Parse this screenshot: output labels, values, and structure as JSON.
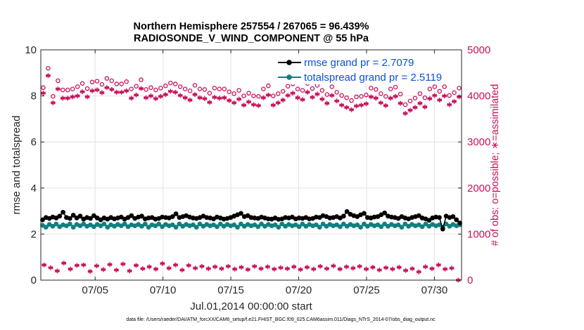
{
  "chart_data": {
    "type": "line",
    "title": "Northern Hemisphere 257554 / 267065 = 96.439%",
    "subtitle": "RADIOSONDE_V_WIND_COMPONENT @ 55 hPa",
    "xlabel": "Jul.01,2014 00:00:00 start",
    "ylabel_left": "rmse and totalspread",
    "ylabel_right": "# of obs: o=possible; ∗=assimilated",
    "footer": "data file: /Users/raeder/DAI/ATM_forcXX/CAM6_setup/f.e21.FHIST_BGC.f09_025.CAM6assim.011/Diags_NTrS_2014-07/obs_diag_output.nc",
    "xlim": [
      1,
      32
    ],
    "ylim_left": [
      0,
      10
    ],
    "ylim_right": [
      0,
      5000
    ],
    "x_ticks": [
      5,
      10,
      15,
      20,
      25,
      30
    ],
    "x_tick_labels": [
      "07/05",
      "07/10",
      "07/15",
      "07/20",
      "07/25",
      "07/30"
    ],
    "y_left_ticks": [
      "0",
      "2",
      "4",
      "6",
      "8",
      "10"
    ],
    "y_right_ticks": [
      "0",
      "1000",
      "2000",
      "3000",
      "4000",
      "5000"
    ],
    "legend": [
      {
        "label": "rmse grand pr = 2.7079",
        "color": "#000000"
      },
      {
        "label": "totalspread grand pr = 2.5119",
        "color": "#0f8080"
      }
    ],
    "colors": {
      "rmse": "#000000",
      "spread": "#0f8080",
      "obs": "#c8105a"
    },
    "series": [
      {
        "name": "rmse",
        "axis": "left",
        "values": [
          2.62,
          2.72,
          2.68,
          2.74,
          2.7,
          2.78,
          2.95,
          2.72,
          2.68,
          2.82,
          2.7,
          2.78,
          2.65,
          2.72,
          2.68,
          2.8,
          2.7,
          2.62,
          2.7,
          2.65,
          2.72,
          2.66,
          2.7,
          2.74,
          2.65,
          2.72,
          2.8,
          2.68,
          2.74,
          2.78,
          2.66,
          2.7,
          2.72,
          2.65,
          2.68,
          2.74,
          2.72,
          2.7,
          2.76,
          2.88,
          2.72,
          2.76,
          2.8,
          2.74,
          2.7,
          2.68,
          2.72,
          2.78,
          2.72,
          2.7,
          2.66,
          2.74,
          2.7,
          2.65,
          2.68,
          2.72,
          2.78,
          2.84,
          2.9,
          2.76,
          2.8,
          2.72,
          2.7,
          2.68,
          2.74,
          2.7,
          2.66,
          2.65,
          2.7,
          2.64,
          2.66,
          2.72,
          2.7,
          2.74,
          2.66,
          2.7,
          2.68,
          2.72,
          2.66,
          2.68,
          2.74,
          2.72,
          2.8,
          2.76,
          2.7,
          2.72,
          2.76,
          2.7,
          2.78,
          2.98,
          2.86,
          2.8,
          2.76,
          2.84,
          2.9,
          2.72,
          2.7,
          2.74,
          2.76,
          2.84,
          2.92,
          2.78,
          2.74,
          2.72,
          2.68,
          2.76,
          2.7,
          2.66,
          2.72,
          2.76,
          2.8,
          2.7,
          2.66,
          2.6,
          2.7,
          2.74,
          2.72,
          2.22,
          2.78,
          2.72,
          2.76,
          2.62,
          2.48
        ]
      },
      {
        "name": "totalspread",
        "axis": "left",
        "values": [
          2.38,
          2.3,
          2.42,
          2.34,
          2.44,
          2.32,
          2.4,
          2.36,
          2.44,
          2.3,
          2.42,
          2.36,
          2.44,
          2.34,
          2.4,
          2.32,
          2.42,
          2.36,
          2.44,
          2.3,
          2.4,
          2.34,
          2.42,
          2.36,
          2.44,
          2.32,
          2.4,
          2.36,
          2.42,
          2.34,
          2.44,
          2.3,
          2.4,
          2.36,
          2.44,
          2.32,
          2.42,
          2.36,
          2.4,
          2.3,
          2.44,
          2.34,
          2.42,
          2.36,
          2.4,
          2.3,
          2.44,
          2.34,
          2.42,
          2.36,
          2.4,
          2.32,
          2.44,
          2.34,
          2.42,
          2.36,
          2.4,
          2.3,
          2.44,
          2.34,
          2.42,
          2.36,
          2.4,
          2.32,
          2.44,
          2.34,
          2.42,
          2.36,
          2.4,
          2.3,
          2.44,
          2.34,
          2.42,
          2.36,
          2.4,
          2.32,
          2.44,
          2.34,
          2.42,
          2.36,
          2.4,
          2.3,
          2.44,
          2.34,
          2.42,
          2.36,
          2.4,
          2.32,
          2.44,
          2.34,
          2.42,
          2.36,
          2.4,
          2.3,
          2.44,
          2.34,
          2.42,
          2.36,
          2.4,
          2.32,
          2.44,
          2.34,
          2.42,
          2.36,
          2.4,
          2.3,
          2.44,
          2.34,
          2.42,
          2.36,
          2.4,
          2.32,
          2.44,
          2.34,
          2.42,
          2.36,
          2.4,
          2.3,
          2.44,
          2.34,
          2.42,
          2.36,
          2.4
        ]
      },
      {
        "name": "possible",
        "axis": "right",
        "marker": "o",
        "values": [
          4180,
          4600,
          3990,
          4330,
          4130,
          4130,
          4150,
          4200,
          4270,
          4160,
          4300,
          4320,
          4250,
          4380,
          4330,
          4260,
          4260,
          4310,
          4150,
          4210,
          4350,
          4140,
          4180,
          4130,
          4170,
          4220,
          4280,
          4260,
          4200,
          4150,
          4110,
          4230,
          4150,
          4140,
          4060,
          4170,
          4150,
          4150,
          4090,
          4050,
          4120,
          4000,
          4060,
          4000,
          3990,
          4150,
          4220,
          4000,
          4050,
          4100,
          4210,
          4260,
          4150,
          4120,
          4270,
          4160,
          4230,
          4120,
          4030,
          4200,
          4080,
          4010,
          3960,
          3900,
          3980,
          3990,
          4020,
          4170,
          4140,
          4050,
          3990,
          4150,
          4190,
          4040,
          3810,
          3890,
          3950,
          4050,
          3960,
          4150,
          4200,
          4100,
          4200,
          4010,
          4070,
          4170
        ]
      },
      {
        "name": "assimilated",
        "axis": "right",
        "marker": "*",
        "values": [
          4060,
          4440,
          3850,
          4150,
          3950,
          3950,
          3980,
          4000,
          4090,
          3980,
          4110,
          4130,
          4070,
          4180,
          4140,
          4080,
          4080,
          4110,
          3950,
          4020,
          4160,
          3960,
          4000,
          3940,
          3990,
          4030,
          4100,
          4080,
          4010,
          3960,
          3910,
          4030,
          3960,
          3940,
          3860,
          3970,
          3950,
          3960,
          3900,
          3850,
          3930,
          3800,
          3870,
          3810,
          3790,
          3960,
          4020,
          3800,
          3850,
          3910,
          4010,
          4060,
          3960,
          3920,
          4080,
          3970,
          4040,
          3930,
          3840,
          4010,
          3890,
          3800,
          3750,
          3700,
          3780,
          3800,
          3830,
          3980,
          3950,
          3850,
          3790,
          3950,
          3990,
          3840,
          3620,
          3690,
          3750,
          3840,
          3760,
          3940,
          4010,
          3910,
          4000,
          3810,
          3880,
          3980
        ]
      },
      {
        "name": "low-assimilated",
        "axis": "right",
        "marker": "*",
        "values": [
          330,
          270,
          200,
          370,
          240,
          320,
          330,
          190,
          310,
          230,
          340,
          220,
          350,
          200,
          320,
          250,
          290,
          240,
          360,
          260,
          330,
          220,
          320,
          260,
          300,
          250,
          290,
          250,
          300,
          240,
          280,
          230,
          300,
          250,
          290,
          240,
          270,
          250,
          290,
          230,
          280,
          240,
          300,
          250,
          310,
          240,
          290,
          260,
          300,
          240,
          280,
          220,
          270,
          240,
          280,
          210,
          250,
          180,
          290,
          250,
          330,
          240,
          260,
          0
        ]
      }
    ]
  }
}
